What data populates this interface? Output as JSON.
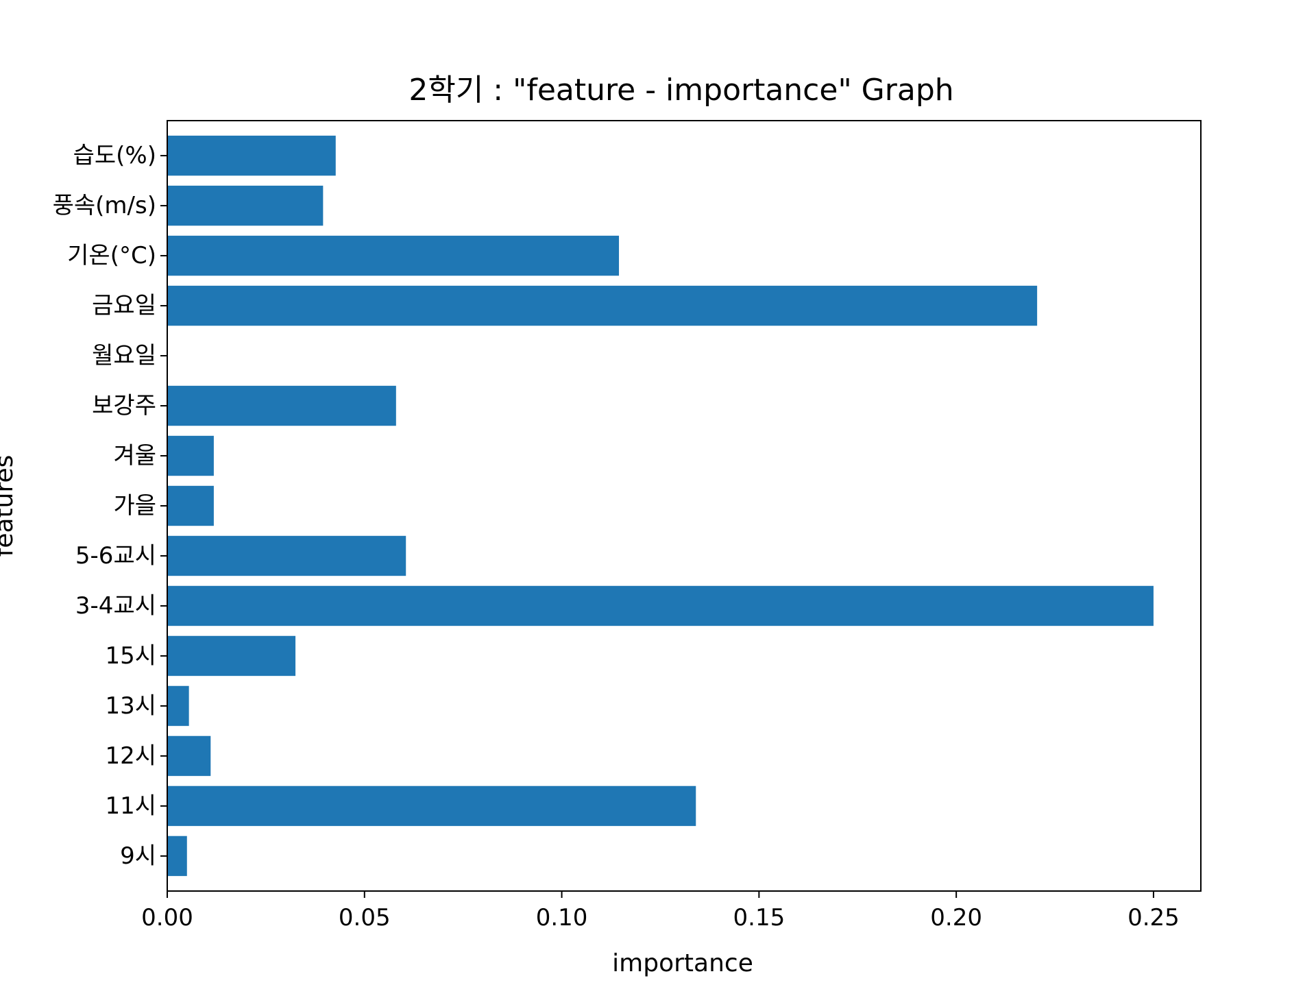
{
  "chart_data": {
    "type": "bar",
    "orientation": "horizontal",
    "title": "2학기 : \"feature - importance\" Graph",
    "xlabel": "importance",
    "ylabel": "features",
    "xlim": [
      0,
      0.262
    ],
    "xticks": [
      0.0,
      0.05,
      0.1,
      0.15,
      0.2,
      0.25
    ],
    "xtick_labels": [
      "0.00",
      "0.05",
      "0.10",
      "0.15",
      "0.20",
      "0.25"
    ],
    "grid": false,
    "bar_color": "#1f77b4",
    "categories": [
      "9시",
      "11시",
      "12시",
      "13시",
      "15시",
      "3-4교시",
      "5-6교시",
      "가을",
      "겨울",
      "보강주",
      "월요일",
      "금요일",
      "기온(°C)",
      "풍속(m/s)",
      "습도(%)"
    ],
    "values": [
      0.005,
      0.134,
      0.011,
      0.0055,
      0.0325,
      0.25,
      0.0605,
      0.0118,
      0.0118,
      0.058,
      0.0,
      0.2205,
      0.1145,
      0.0395,
      0.0427
    ]
  }
}
